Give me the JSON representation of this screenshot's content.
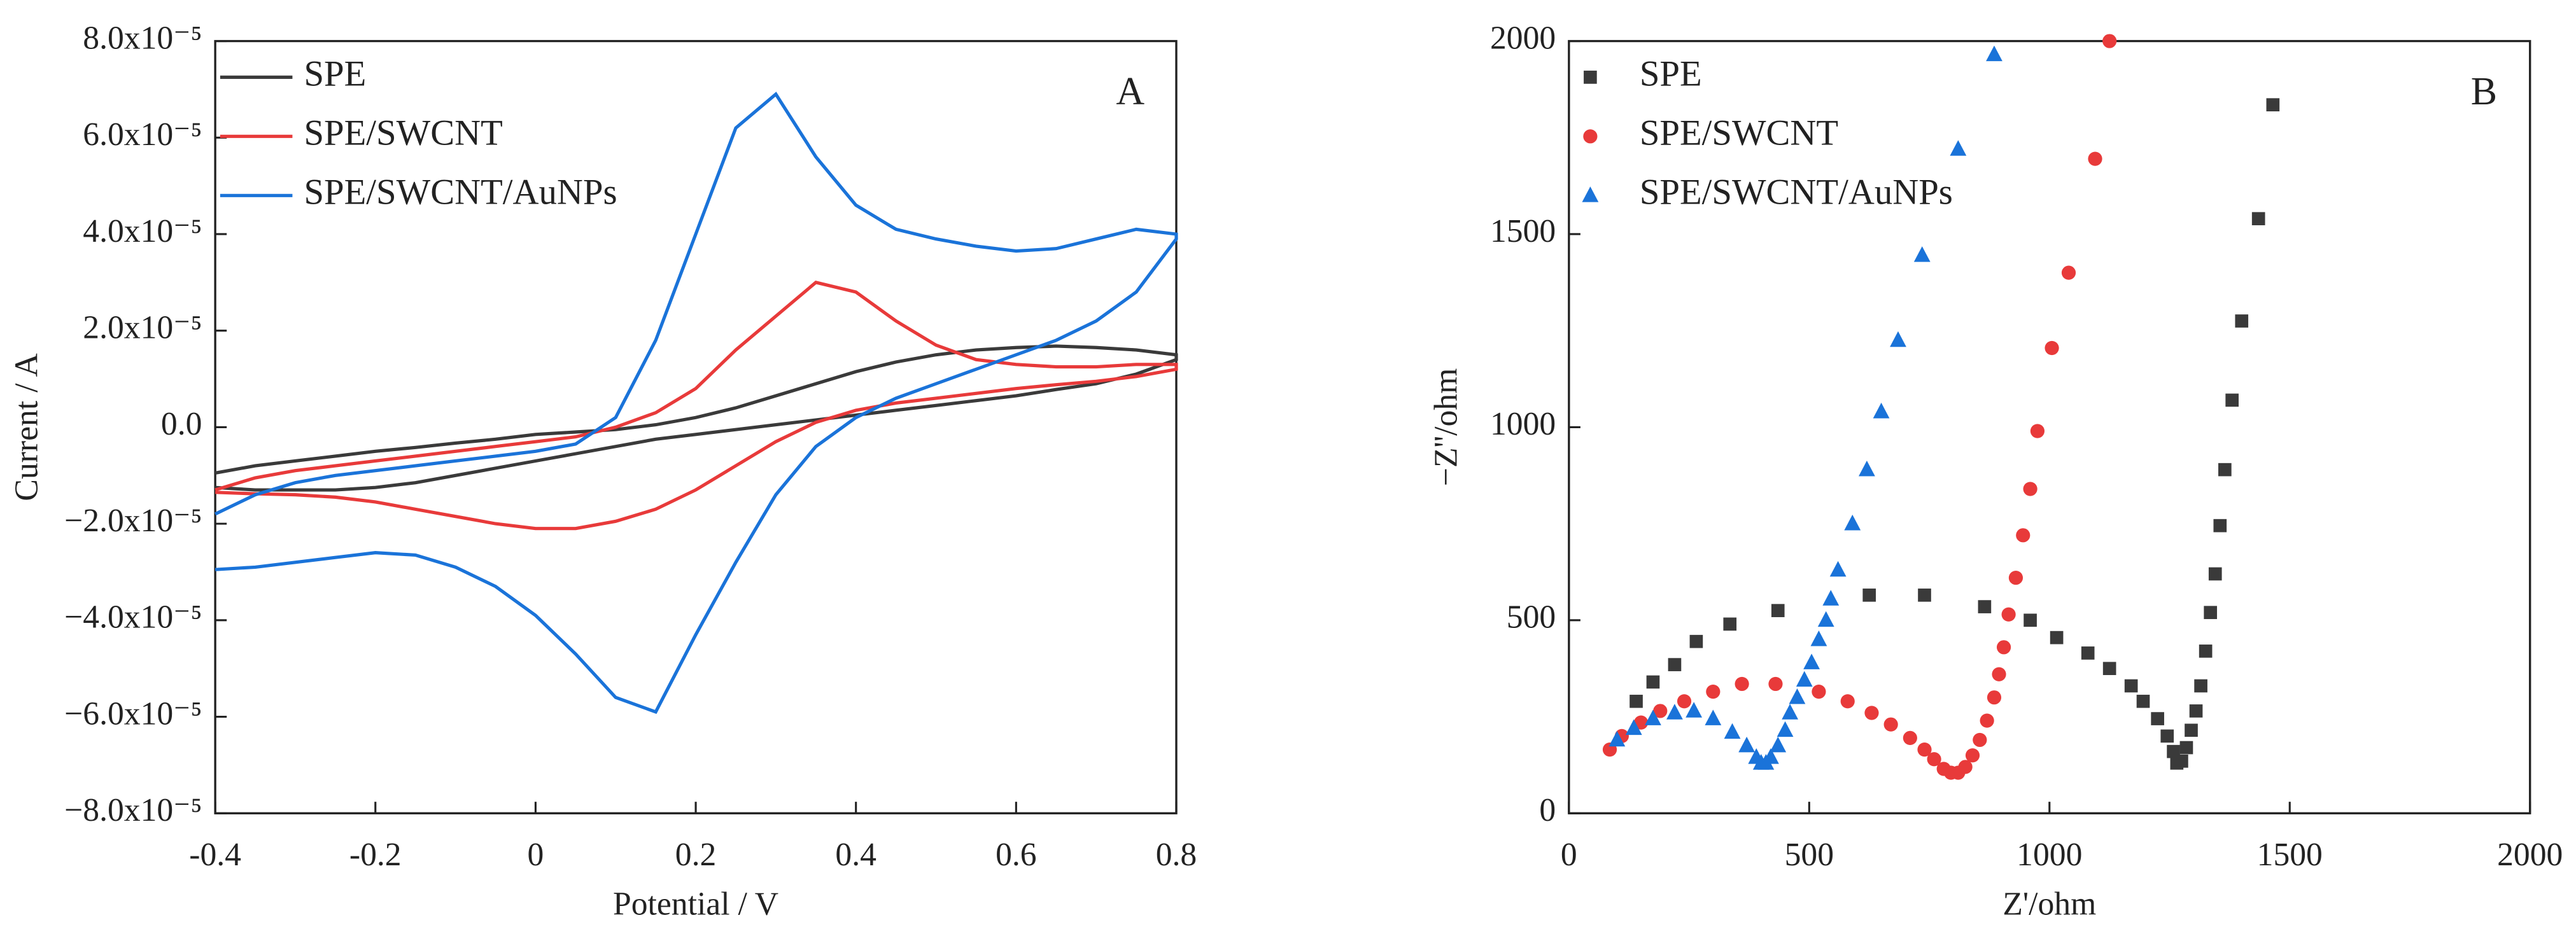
{
  "chart_data": [
    {
      "type": "line",
      "panel_label": "A",
      "xlabel": "Potential / V",
      "ylabel": "Current / A",
      "xlim": [
        -0.4,
        0.8
      ],
      "xticks": [
        -0.4,
        -0.2,
        0.0,
        0.2,
        0.4,
        0.6,
        0.8
      ],
      "ylim": [
        -8e-05,
        8e-05
      ],
      "yticks": [
        {
          "value": -8e-05,
          "label": "−8.0x10⁻⁵"
        },
        {
          "value": -6e-05,
          "label": "−6.0x10⁻⁵"
        },
        {
          "value": -4e-05,
          "label": "−4.0x10⁻⁵"
        },
        {
          "value": -2e-05,
          "label": "−2.0x10⁻⁵"
        },
        {
          "value": 0,
          "label": "0.0"
        },
        {
          "value": 2e-05,
          "label": "2.0x10⁻⁵"
        },
        {
          "value": 4e-05,
          "label": "4.0x10⁻⁵"
        },
        {
          "value": 6e-05,
          "label": "6.0x10⁻⁵"
        },
        {
          "value": 8e-05,
          "label": "8.0x10⁻⁵"
        }
      ],
      "legend": "upper left",
      "series": [
        {
          "name": "SPE",
          "color": "#3a3a3a",
          "x": [
            -0.4,
            -0.35,
            -0.3,
            -0.25,
            -0.2,
            -0.15,
            -0.1,
            -0.05,
            0,
            0.05,
            0.1,
            0.15,
            0.2,
            0.25,
            0.3,
            0.35,
            0.4,
            0.45,
            0.5,
            0.55,
            0.6,
            0.65,
            0.7,
            0.75,
            0.8,
            0.8,
            0.75,
            0.7,
            0.65,
            0.6,
            0.55,
            0.5,
            0.45,
            0.4,
            0.35,
            0.3,
            0.25,
            0.2,
            0.15,
            0.1,
            0.05,
            0,
            -0.05,
            -0.1,
            -0.15,
            -0.2,
            -0.25,
            -0.3,
            -0.35,
            -0.4
          ],
          "values": [
            -9.5e-06,
            -8e-06,
            -7e-06,
            -6e-06,
            -5e-06,
            -4.2e-06,
            -3.3e-06,
            -2.5e-06,
            -1.5e-06,
            -1e-06,
            -5e-07,
            5e-07,
            2e-06,
            4e-06,
            6.5e-06,
            9e-06,
            1.15e-05,
            1.35e-05,
            1.5e-05,
            1.6e-05,
            1.65e-05,
            1.68e-05,
            1.65e-05,
            1.6e-05,
            1.5e-05,
            1.4e-05,
            1.1e-05,
            9e-06,
            7.8e-06,
            6.5e-06,
            5.5e-06,
            4.5e-06,
            3.5e-06,
            2.5e-06,
            1.5e-06,
            5e-07,
            -5e-07,
            -1.5e-06,
            -2.5e-06,
            -4e-06,
            -5.5e-06,
            -7e-06,
            -8.5e-06,
            -1e-05,
            -1.15e-05,
            -1.25e-05,
            -1.3e-05,
            -1.3e-05,
            -1.3e-05,
            -1.25e-05
          ]
        },
        {
          "name": "SPE/SWCNT",
          "color": "#e83a3a",
          "x": [
            -0.4,
            -0.35,
            -0.3,
            -0.25,
            -0.2,
            -0.15,
            -0.1,
            -0.05,
            0,
            0.05,
            0.1,
            0.15,
            0.2,
            0.25,
            0.3,
            0.35,
            0.4,
            0.45,
            0.5,
            0.55,
            0.6,
            0.65,
            0.7,
            0.75,
            0.8,
            0.8,
            0.75,
            0.7,
            0.65,
            0.6,
            0.55,
            0.5,
            0.45,
            0.4,
            0.35,
            0.3,
            0.25,
            0.2,
            0.15,
            0.1,
            0.05,
            0,
            -0.05,
            -0.1,
            -0.15,
            -0.2,
            -0.25,
            -0.3,
            -0.35,
            -0.4
          ],
          "values": [
            -1.3e-05,
            -1.05e-05,
            -9e-06,
            -8e-06,
            -7e-06,
            -6e-06,
            -5e-06,
            -4e-06,
            -3e-06,
            -2e-06,
            0,
            3e-06,
            8e-06,
            1.6e-05,
            2.3e-05,
            3e-05,
            2.8e-05,
            2.2e-05,
            1.7e-05,
            1.4e-05,
            1.3e-05,
            1.25e-05,
            1.25e-05,
            1.3e-05,
            1.3e-05,
            1.2e-05,
            1.05e-05,
            9.5e-06,
            8.8e-06,
            8e-06,
            7e-06,
            6e-06,
            5e-06,
            3.5e-06,
            1e-06,
            -3e-06,
            -8e-06,
            -1.3e-05,
            -1.7e-05,
            -1.95e-05,
            -2.1e-05,
            -2.1e-05,
            -2e-05,
            -1.85e-05,
            -1.7e-05,
            -1.55e-05,
            -1.45e-05,
            -1.4e-05,
            -1.38e-05,
            -1.35e-05
          ]
        },
        {
          "name": "SPE/SWCNT/AuNPs",
          "color": "#1a73d9",
          "x": [
            -0.4,
            -0.35,
            -0.3,
            -0.25,
            -0.2,
            -0.15,
            -0.1,
            -0.05,
            0,
            0.05,
            0.1,
            0.15,
            0.2,
            0.25,
            0.3,
            0.35,
            0.4,
            0.45,
            0.5,
            0.55,
            0.6,
            0.65,
            0.7,
            0.75,
            0.8,
            0.8,
            0.75,
            0.7,
            0.65,
            0.6,
            0.55,
            0.5,
            0.45,
            0.4,
            0.35,
            0.3,
            0.25,
            0.2,
            0.15,
            0.1,
            0.05,
            0,
            -0.05,
            -0.1,
            -0.15,
            -0.2,
            -0.25,
            -0.3,
            -0.35,
            -0.4
          ],
          "values": [
            -1.8e-05,
            -1.4e-05,
            -1.15e-05,
            -1e-05,
            -9e-06,
            -8e-06,
            -7e-06,
            -6e-06,
            -5e-06,
            -3.5e-06,
            2e-06,
            1.8e-05,
            4e-05,
            6.2e-05,
            6.9e-05,
            5.6e-05,
            4.6e-05,
            4.1e-05,
            3.9e-05,
            3.75e-05,
            3.65e-05,
            3.7e-05,
            3.9e-05,
            4.1e-05,
            4e-05,
            3.9e-05,
            2.8e-05,
            2.2e-05,
            1.8e-05,
            1.5e-05,
            1.2e-05,
            9e-06,
            6e-06,
            2e-06,
            -4e-06,
            -1.4e-05,
            -2.8e-05,
            -4.3e-05,
            -5.9e-05,
            -5.6e-05,
            -4.7e-05,
            -3.9e-05,
            -3.3e-05,
            -2.9e-05,
            -2.65e-05,
            -2.6e-05,
            -2.7e-05,
            -2.8e-05,
            -2.9e-05,
            -2.95e-05
          ]
        }
      ]
    },
    {
      "type": "scatter",
      "panel_label": "B",
      "xlabel": "Z'/ohm",
      "ylabel": "−Z''/ohm",
      "xlim": [
        0,
        2000
      ],
      "xticks": [
        0,
        500,
        1000,
        1500,
        2000
      ],
      "ylim": [
        0,
        2000
      ],
      "yticks": [
        0,
        500,
        1000,
        1500,
        2000
      ],
      "legend": "upper left",
      "series": [
        {
          "name": "SPE",
          "color": "#3a3a3a",
          "marker": "square",
          "x": [
            140,
            175,
            220,
            265,
            335,
            435,
            625,
            740,
            865,
            960,
            1015,
            1080,
            1125,
            1170,
            1195,
            1225,
            1245,
            1258,
            1265,
            1275,
            1285,
            1295,
            1305,
            1315,
            1325,
            1335,
            1345,
            1355,
            1365,
            1380,
            1400,
            1435,
            1465
          ],
          "values": [
            290,
            340,
            385,
            445,
            490,
            525,
            565,
            565,
            535,
            500,
            455,
            415,
            375,
            330,
            290,
            245,
            200,
            160,
            130,
            135,
            170,
            215,
            265,
            330,
            420,
            520,
            620,
            745,
            890,
            1070,
            1275,
            1540,
            1835
          ]
        },
        {
          "name": "SPE/SWCNT",
          "color": "#e83a3a",
          "marker": "circle",
          "x": [
            85,
            110,
            150,
            190,
            240,
            300,
            360,
            430,
            520,
            580,
            630,
            670,
            710,
            740,
            760,
            780,
            795,
            810,
            825,
            840,
            855,
            870,
            885,
            895,
            905,
            915,
            930,
            945,
            960,
            975,
            1005,
            1040,
            1095,
            1125
          ],
          "values": [
            165,
            200,
            235,
            265,
            290,
            315,
            335,
            335,
            315,
            290,
            260,
            230,
            195,
            165,
            140,
            115,
            105,
            105,
            120,
            150,
            190,
            240,
            300,
            360,
            430,
            515,
            610,
            720,
            840,
            990,
            1205,
            1400,
            1695,
            2000
          ]
        },
        {
          "name": "SPE/SWCNT/AuNPs",
          "color": "#1a73d9",
          "marker": "triangle",
          "x": [
            100,
            135,
            175,
            220,
            260,
            300,
            340,
            370,
            390,
            400,
            410,
            420,
            435,
            450,
            460,
            475,
            490,
            505,
            520,
            535,
            545,
            560,
            590,
            620,
            650,
            685,
            735,
            810,
            885
          ],
          "values": [
            190,
            220,
            245,
            260,
            265,
            245,
            210,
            175,
            145,
            130,
            130,
            145,
            175,
            215,
            260,
            300,
            345,
            390,
            450,
            500,
            555,
            630,
            750,
            890,
            1040,
            1225,
            1445,
            1720,
            1965
          ]
        }
      ]
    }
  ]
}
